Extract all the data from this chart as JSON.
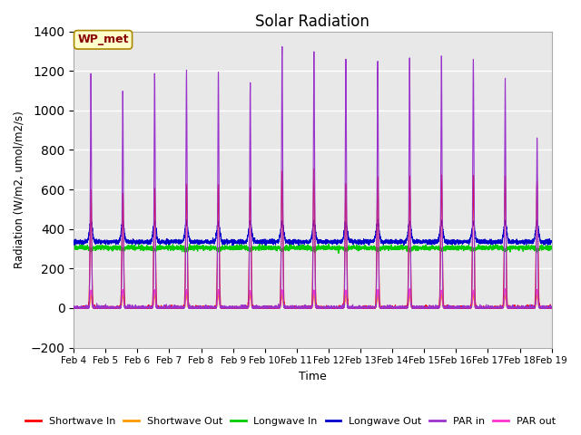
{
  "title": "Solar Radiation",
  "xlabel": "Time",
  "ylabel": "Radiation (W/m2, umol/m2/s)",
  "ylim": [
    -200,
    1400
  ],
  "xlim": [
    0,
    15
  ],
  "bg_color": "#e8e8e8",
  "fig_bg": "#ffffff",
  "annotation": "WP_met",
  "annotation_bg": "#ffffcc",
  "annotation_border": "#aa8800",
  "annotation_text_color": "#880000",
  "tick_labels": [
    "Feb 4",
    "Feb 5",
    "Feb 6",
    "Feb 7",
    "Feb 8",
    "Feb 9",
    "Feb 10",
    "Feb 11",
    "Feb 12",
    "Feb 13",
    "Feb 14",
    "Feb 15",
    "Feb 16",
    "Feb 17",
    "Feb 18",
    "Feb 19"
  ],
  "series": {
    "shortwave_in": {
      "color": "#ff0000",
      "label": "Shortwave In"
    },
    "shortwave_out": {
      "color": "#ff9900",
      "label": "Shortwave Out"
    },
    "longwave_in": {
      "color": "#00cc00",
      "label": "Longwave In"
    },
    "longwave_out": {
      "color": "#0000cc",
      "label": "Longwave Out"
    },
    "par_in": {
      "color": "#9933cc",
      "label": "PAR in"
    },
    "par_out": {
      "color": "#ff33cc",
      "label": "PAR out"
    }
  },
  "n_days": 15,
  "pts_per_day": 288
}
